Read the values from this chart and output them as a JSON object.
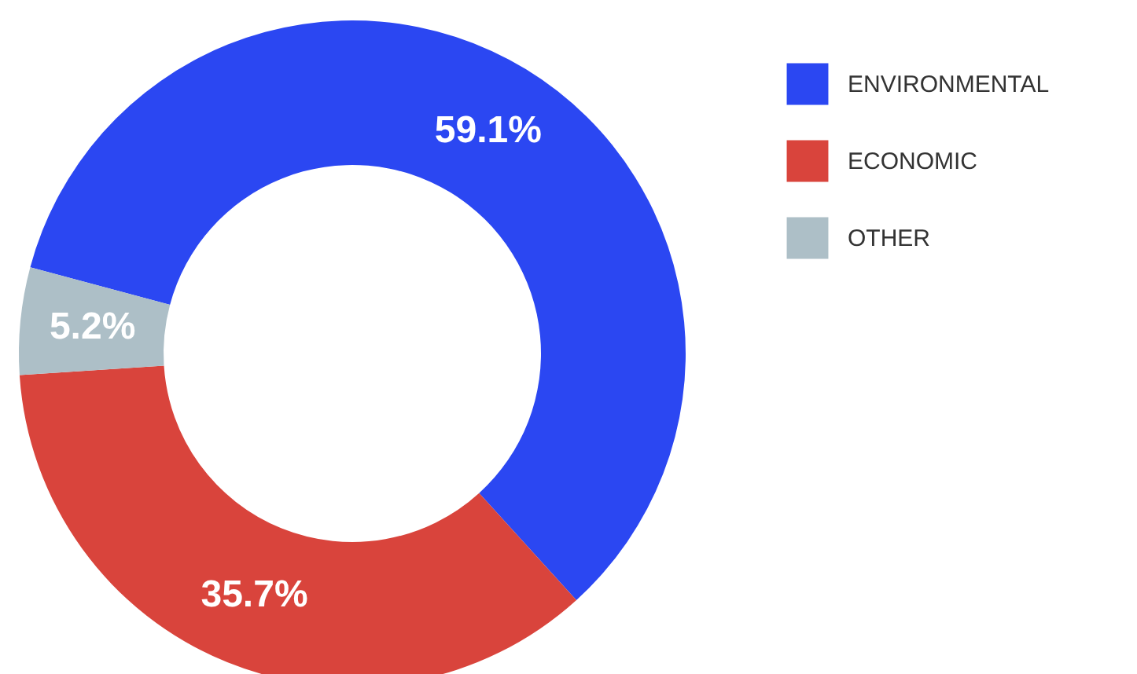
{
  "chart_data": {
    "type": "donut",
    "categories": [
      "ENVIRONMENTAL",
      "ECONOMIC",
      "OTHER"
    ],
    "values": [
      59.1,
      35.7,
      5.2
    ],
    "colors": [
      "#2b47f2",
      "#d9443c",
      "#adbfc7"
    ],
    "value_labels": [
      "59.1%",
      "35.7%",
      "5.2%"
    ],
    "legend": "right"
  }
}
